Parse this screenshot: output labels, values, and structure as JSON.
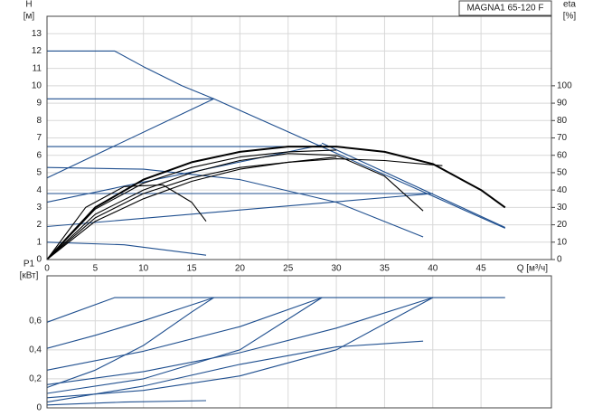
{
  "chart_data": [
    {
      "type": "line",
      "title": "MAGNA1 65-120 F",
      "ylabel": "H",
      "ylabel_unit": "[м]",
      "y2label": "eta",
      "y2label_unit": "[%]",
      "xlabel": "Q [м³/ч]",
      "xlim": [
        0,
        52.3
      ],
      "xticks": [
        0,
        5,
        10,
        15,
        20,
        25,
        30,
        35,
        40,
        45
      ],
      "ylim": [
        0,
        14
      ],
      "yticks": [
        0,
        1,
        2,
        3,
        4,
        5,
        6,
        7,
        8,
        9,
        10,
        11,
        12,
        13
      ],
      "y2lim": [
        0,
        140
      ],
      "y2ticks": [
        0,
        10,
        20,
        30,
        40,
        50,
        60,
        70,
        80,
        90,
        100
      ],
      "grid": true,
      "series": [
        {
          "color": "#1f4f8f",
          "x": [
            0,
            7,
            10,
            14,
            17.3,
            47.5
          ],
          "values": [
            12,
            12,
            11.1,
            10.0,
            9.25,
            1.8
          ]
        },
        {
          "color": "#1f4f8f",
          "x": [
            0,
            17.3
          ],
          "values": [
            9.25,
            9.25
          ]
        },
        {
          "color": "#1f4f8f",
          "x": [
            0,
            17.3
          ],
          "values": [
            4.7,
            9.25
          ]
        },
        {
          "color": "#1f4f8f",
          "x": [
            0,
            28.5
          ],
          "values": [
            6.5,
            6.5
          ]
        },
        {
          "color": "#1f4f8f",
          "x": [
            0,
            28.5
          ],
          "values": [
            3.3,
            6.6
          ]
        },
        {
          "color": "#1f4f8f",
          "x": [
            28.5,
            47.5
          ],
          "values": [
            6.7,
            1.85
          ]
        },
        {
          "color": "#1f4f8f",
          "x": [
            0,
            10,
            20,
            30,
            39
          ],
          "values": [
            5.3,
            5.2,
            4.6,
            3.3,
            1.3
          ]
        },
        {
          "color": "#1f4f8f",
          "x": [
            0,
            40
          ],
          "values": [
            3.8,
            3.8
          ]
        },
        {
          "color": "#1f4f8f",
          "x": [
            0,
            40
          ],
          "values": [
            1.9,
            3.8
          ]
        },
        {
          "color": "#1f4f8f",
          "x": [
            0,
            8,
            16.5
          ],
          "values": [
            1.0,
            0.85,
            0.25
          ]
        },
        {
          "color": "#000000",
          "linewidth": 2,
          "x": [
            0,
            5,
            10,
            15,
            20,
            25,
            30,
            35,
            40,
            45,
            47.5
          ],
          "values": [
            0,
            3.0,
            4.6,
            5.6,
            6.2,
            6.5,
            6.5,
            6.2,
            5.5,
            4.0,
            3.0
          ]
        },
        {
          "color": "#000000",
          "x": [
            0,
            4,
            8,
            12,
            15,
            16.5
          ],
          "values": [
            0,
            3.0,
            4.2,
            4.3,
            3.3,
            2.2
          ]
        },
        {
          "color": "#000000",
          "x": [
            0,
            5,
            10,
            15,
            20,
            25,
            30,
            35,
            39
          ],
          "values": [
            0,
            2.6,
            4.0,
            5.0,
            5.7,
            6.1,
            6.0,
            4.8,
            2.8
          ]
        },
        {
          "color": "#000000",
          "x": [
            0,
            5,
            10,
            15,
            20,
            25,
            30,
            35,
            40,
            41
          ],
          "values": [
            0,
            2.4,
            3.8,
            4.7,
            5.3,
            5.6,
            5.8,
            5.7,
            5.45,
            5.4
          ]
        },
        {
          "color": "#000000",
          "x": [
            0,
            5,
            10,
            15,
            20,
            25,
            30
          ],
          "values": [
            0,
            2.9,
            4.4,
            5.3,
            5.9,
            6.2,
            6.3
          ]
        },
        {
          "color": "#000000",
          "x": [
            0,
            5,
            10,
            15,
            20,
            25,
            30
          ],
          "values": [
            0,
            2.2,
            3.5,
            4.5,
            5.2,
            5.6,
            5.9
          ]
        }
      ]
    },
    {
      "type": "line",
      "ylabel": "P1",
      "ylabel_unit": "[кВт]",
      "xlim": [
        0,
        52.3
      ],
      "ylim": [
        0,
        0.91
      ],
      "yticks": [
        0,
        {
          "value": 0.2,
          "label": "0,2"
        },
        {
          "value": 0.4,
          "label": "0,4"
        },
        {
          "value": 0.6,
          "label": "0,6"
        }
      ],
      "grid": true,
      "series": [
        {
          "color": "#1f4f8f",
          "x": [
            0,
            7,
            47.5
          ],
          "values": [
            0.59,
            0.76,
            0.76
          ]
        },
        {
          "color": "#1f4f8f",
          "x": [
            0,
            5,
            10,
            15,
            17.3
          ],
          "values": [
            0.41,
            0.5,
            0.6,
            0.71,
            0.76
          ]
        },
        {
          "color": "#1f4f8f",
          "x": [
            0,
            10,
            20,
            28.5
          ],
          "values": [
            0.26,
            0.39,
            0.56,
            0.76
          ]
        },
        {
          "color": "#1f4f8f",
          "x": [
            0,
            10,
            20,
            30,
            40
          ],
          "values": [
            0.16,
            0.25,
            0.38,
            0.55,
            0.76
          ]
        },
        {
          "color": "#1f4f8f",
          "x": [
            0,
            5,
            10,
            15,
            17.3
          ],
          "values": [
            0.14,
            0.26,
            0.43,
            0.66,
            0.76
          ]
        },
        {
          "color": "#1f4f8f",
          "x": [
            0,
            10,
            20,
            28.5
          ],
          "values": [
            0.1,
            0.2,
            0.4,
            0.76
          ]
        },
        {
          "color": "#1f4f8f",
          "x": [
            0,
            10,
            20,
            30,
            40
          ],
          "values": [
            0.07,
            0.12,
            0.22,
            0.4,
            0.76
          ]
        },
        {
          "color": "#1f4f8f",
          "x": [
            0,
            10,
            20,
            30,
            39
          ],
          "values": [
            0.04,
            0.15,
            0.3,
            0.42,
            0.46
          ]
        },
        {
          "color": "#1f4f8f",
          "x": [
            0,
            8,
            16.5
          ],
          "values": [
            0.02,
            0.04,
            0.05
          ]
        }
      ]
    }
  ]
}
